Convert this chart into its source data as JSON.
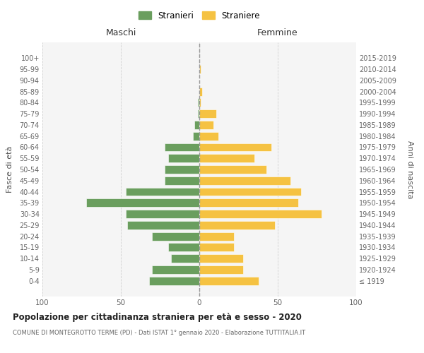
{
  "age_groups": [
    "100+",
    "95-99",
    "90-94",
    "85-89",
    "80-84",
    "75-79",
    "70-74",
    "65-69",
    "60-64",
    "55-59",
    "50-54",
    "45-49",
    "40-44",
    "35-39",
    "30-34",
    "25-29",
    "20-24",
    "15-19",
    "10-14",
    "5-9",
    "0-4"
  ],
  "birth_years": [
    "≤ 1919",
    "1920-1924",
    "1925-1929",
    "1930-1934",
    "1935-1939",
    "1940-1944",
    "1945-1949",
    "1950-1954",
    "1955-1959",
    "1960-1964",
    "1965-1969",
    "1970-1974",
    "1975-1979",
    "1980-1984",
    "1985-1989",
    "1990-1994",
    "1995-1999",
    "2000-2004",
    "2005-2009",
    "2010-2014",
    "2015-2019"
  ],
  "maschi": [
    0,
    0,
    0,
    0,
    1,
    1,
    3,
    4,
    22,
    20,
    22,
    22,
    47,
    72,
    47,
    46,
    30,
    20,
    18,
    30,
    32
  ],
  "femmine": [
    0,
    1,
    0,
    2,
    1,
    11,
    9,
    12,
    46,
    35,
    43,
    58,
    65,
    63,
    78,
    48,
    22,
    22,
    28,
    28,
    38
  ],
  "color_maschi": "#6a9e5e",
  "color_femmine": "#f5c242",
  "title": "Popolazione per cittadinanza straniera per età e sesso - 2020",
  "subtitle": "COMUNE DI MONTEGROTTO TERME (PD) - Dati ISTAT 1° gennaio 2020 - Elaborazione TUTTITALIA.IT",
  "xlabel_left": "Maschi",
  "xlabel_right": "Femmine",
  "ylabel_left": "Fasce di età",
  "ylabel_right": "Anni di nascita",
  "legend_maschi": "Stranieri",
  "legend_femmine": "Straniere",
  "xlim": 100,
  "background_color": "#ffffff",
  "grid_color": "#cccccc"
}
